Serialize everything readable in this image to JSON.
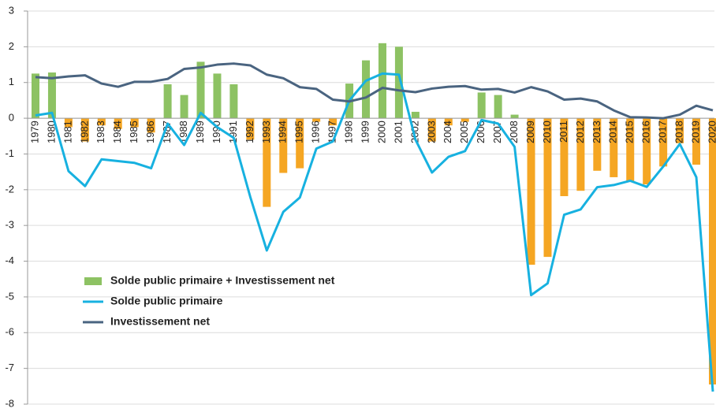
{
  "chart_data": {
    "type": "bar",
    "categories": [
      "1979",
      "1980",
      "1981",
      "1982",
      "1983",
      "1984",
      "1985",
      "1986",
      "1987",
      "1988",
      "1989",
      "1990",
      "1991",
      "1992",
      "1993",
      "1994",
      "1995",
      "1996",
      "1997",
      "1998",
      "1999",
      "2000",
      "2001",
      "2002",
      "2003",
      "2004",
      "2005",
      "2006",
      "2007",
      "2008",
      "2009",
      "2010",
      "2011",
      "2012",
      "2013",
      "2014",
      "2015",
      "2016",
      "2017",
      "2018",
      "2019",
      "2020"
    ],
    "series": [
      {
        "name": "Solde public primaire + Investissement net",
        "type": "bar",
        "color": "#8dc263",
        "negative_color": "#f5a623",
        "values": [
          1.25,
          1.28,
          -0.25,
          -0.65,
          -0.2,
          -0.3,
          -0.25,
          -0.4,
          0.95,
          0.65,
          1.58,
          1.25,
          0.95,
          -0.6,
          -2.48,
          -1.53,
          -1.4,
          -0.1,
          -0.2,
          0.97,
          1.62,
          2.1,
          2.0,
          0.18,
          -0.65,
          -0.2,
          -0.1,
          0.72,
          0.65,
          0.1,
          -4.1,
          -3.88,
          -2.18,
          -2.03,
          -1.47,
          -1.65,
          -1.78,
          -1.85,
          -1.35,
          -0.7,
          -1.3,
          -7.45
        ]
      },
      {
        "name": "Solde public primaire",
        "type": "line",
        "color": "#17b1e0",
        "values": [
          0.08,
          0.15,
          -1.48,
          -1.9,
          -1.15,
          -1.2,
          -1.25,
          -1.4,
          -0.15,
          -0.75,
          0.15,
          -0.25,
          -0.55,
          -2.2,
          -3.7,
          -2.62,
          -2.22,
          -0.85,
          -0.65,
          0.5,
          1.05,
          1.25,
          1.22,
          -0.6,
          -1.52,
          -1.08,
          -0.92,
          -0.05,
          -0.15,
          -0.8,
          -4.95,
          -4.62,
          -2.7,
          -2.55,
          -1.93,
          -1.87,
          -1.75,
          -1.92,
          -1.35,
          -0.72,
          -1.65,
          -7.65
        ]
      },
      {
        "name": "Investissement net",
        "type": "line",
        "color": "#4a6480",
        "values": [
          1.15,
          1.12,
          1.17,
          1.2,
          0.97,
          0.88,
          1.02,
          1.02,
          1.1,
          1.38,
          1.42,
          1.5,
          1.53,
          1.48,
          1.22,
          1.12,
          0.87,
          0.82,
          0.52,
          0.47,
          0.58,
          0.85,
          0.78,
          0.73,
          0.83,
          0.88,
          0.9,
          0.8,
          0.82,
          0.72,
          0.87,
          0.75,
          0.52,
          0.55,
          0.47,
          0.22,
          0.03,
          0.02,
          0.0,
          0.1,
          0.35,
          0.22
        ]
      }
    ],
    "ylim": [
      -8,
      3
    ],
    "yticks": [
      3,
      2,
      1,
      0,
      -1,
      -2,
      -3,
      -4,
      -5,
      -6,
      -7,
      -8
    ],
    "grid": true,
    "legend": "lower left"
  }
}
